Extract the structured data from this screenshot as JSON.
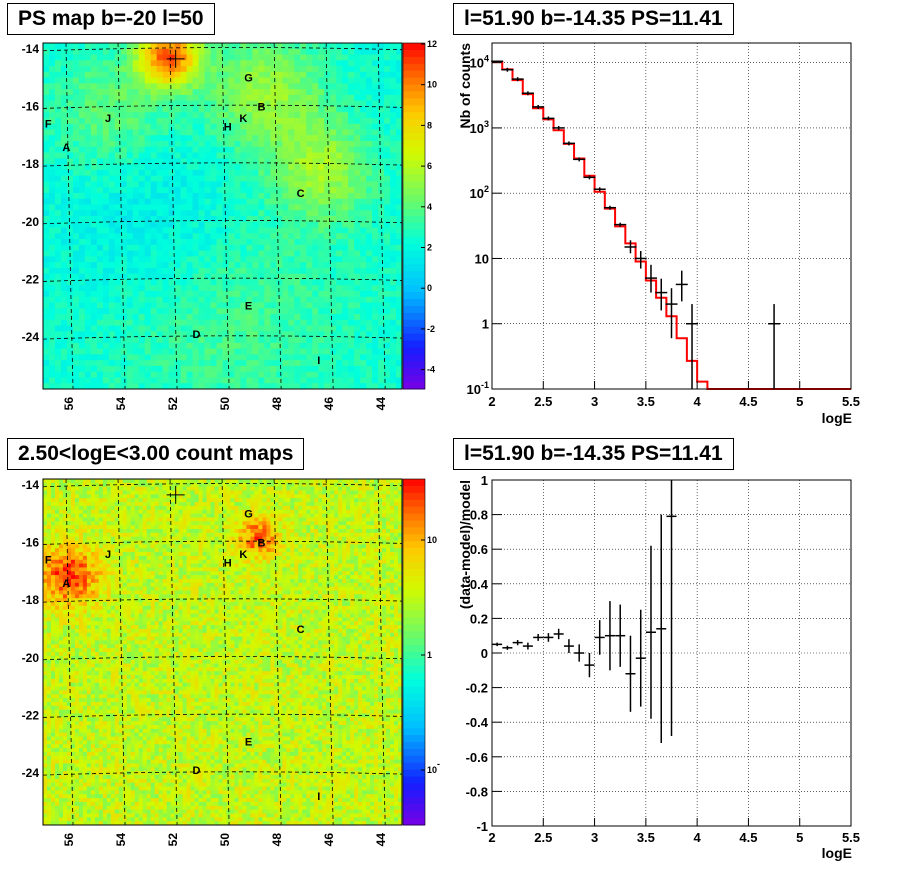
{
  "titles": {
    "tl": "PS map b=-20 l=50",
    "tr": "l=51.90 b=-14.35 PS=11.41",
    "bl": "2.50<logE<3.00 count maps",
    "br": "l=51.90 b=-14.35 PS=11.41"
  },
  "chart_data": [
    {
      "type": "heatmap",
      "title": "PS map b=-20 l=50",
      "x_ticks": [
        "56",
        "54",
        "52",
        "50",
        "48",
        "46",
        "44"
      ],
      "y_ticks": [
        "-14",
        "-16",
        "-18",
        "-20",
        "-22",
        "-24"
      ],
      "colorbar_ticks": [
        "12",
        "10",
        "8",
        "6",
        "4",
        "2",
        "0",
        "-2",
        "-4"
      ],
      "colorbar_range": [
        -5,
        12
      ],
      "source_labels": [
        "F",
        "A",
        "J",
        "G",
        "B",
        "K",
        "H",
        "C",
        "E",
        "D",
        "I"
      ],
      "marker": {
        "l": 51.9,
        "b": -14.35
      }
    },
    {
      "type": "line",
      "title": "l=51.90 b=-14.35 PS=11.41",
      "xlabel": "logE",
      "ylabel": "Nb of counts",
      "y_scale": "log",
      "xlim": [
        2,
        5.5
      ],
      "ylim": [
        0.1,
        20000
      ],
      "x_ticks": [
        "2",
        "2.5",
        "3",
        "3.5",
        "4",
        "4.5",
        "5",
        "5.5"
      ],
      "y_ticks": [
        "10^4",
        "10^3",
        "10^2",
        "10",
        "1",
        "10^-1"
      ],
      "grid": true,
      "data_points": [
        {
          "x": 2.05,
          "y": 10500,
          "err_lo": 10400,
          "err_hi": 10600
        },
        {
          "x": 2.15,
          "y": 7800
        },
        {
          "x": 2.25,
          "y": 5600
        },
        {
          "x": 2.35,
          "y": 3400
        },
        {
          "x": 2.45,
          "y": 2100
        },
        {
          "x": 2.55,
          "y": 1400
        },
        {
          "x": 2.65,
          "y": 1000
        },
        {
          "x": 2.75,
          "y": 580
        },
        {
          "x": 2.85,
          "y": 330
        },
        {
          "x": 2.95,
          "y": 175
        },
        {
          "x": 3.05,
          "y": 115
        },
        {
          "x": 3.15,
          "y": 60
        },
        {
          "x": 3.25,
          "y": 33
        },
        {
          "x": 3.35,
          "y": 15,
          "err_lo": 12,
          "err_hi": 19
        },
        {
          "x": 3.45,
          "y": 10,
          "err_lo": 7,
          "err_hi": 13
        },
        {
          "x": 3.55,
          "y": 5,
          "err_lo": 3,
          "err_hi": 8
        },
        {
          "x": 3.65,
          "y": 3,
          "err_lo": 1.6,
          "err_hi": 4.9
        },
        {
          "x": 3.75,
          "y": 2,
          "err_lo": 0.6,
          "err_hi": 3.5
        },
        {
          "x": 3.85,
          "y": 4,
          "err_lo": 2.2,
          "err_hi": 6.5
        },
        {
          "x": 3.95,
          "y": 1,
          "err_lo": 0.1,
          "err_hi": 2
        },
        {
          "x": 4.75,
          "y": 1,
          "err_lo": 0.1,
          "err_hi": 2
        }
      ],
      "model_step": {
        "edges": [
          2.0,
          2.1,
          2.2,
          2.3,
          2.4,
          2.5,
          2.6,
          2.7,
          2.8,
          2.9,
          3.0,
          3.1,
          3.2,
          3.3,
          3.4,
          3.5,
          3.6,
          3.7,
          3.8,
          3.9,
          4.0,
          4.1,
          5.5
        ],
        "values": [
          10200,
          7900,
          5400,
          3300,
          2000,
          1350,
          920,
          570,
          340,
          185,
          105,
          58,
          31,
          17,
          9,
          4.6,
          2.5,
          1.3,
          0.6,
          0.27,
          0.13,
          0.1
        ]
      },
      "series": [
        {
          "name": "",
          "color": "#000000"
        },
        {
          "name": "",
          "color": "#ff0000"
        }
      ]
    },
    {
      "type": "heatmap",
      "title": "2.50<logE<3.00 count maps",
      "x_ticks": [
        "56",
        "54",
        "52",
        "50",
        "48",
        "46",
        "44"
      ],
      "y_ticks": [
        "-14",
        "-16",
        "-18",
        "-20",
        "-22",
        "-24"
      ],
      "colorbar_ticks": [
        "10",
        "1",
        "10^-1"
      ],
      "colorbar_scale": "log",
      "source_labels": [
        "F",
        "A",
        "J",
        "G",
        "B",
        "K",
        "H",
        "C",
        "E",
        "D",
        "I"
      ]
    },
    {
      "type": "scatter",
      "title": "l=51.90 b=-14.35 PS=11.41",
      "xlabel": "logE",
      "ylabel": "(data-model)/model",
      "xlim": [
        2,
        5.5
      ],
      "ylim": [
        -1,
        1
      ],
      "x_ticks": [
        "2",
        "2.5",
        "3",
        "3.5",
        "4",
        "4.5",
        "5",
        "5.5"
      ],
      "y_ticks": [
        "1",
        "0.8",
        "0.6",
        "0.4",
        "0.2",
        "0",
        "-0.2",
        "-0.4",
        "-0.6",
        "-0.8",
        "-1"
      ],
      "grid": true,
      "points": [
        {
          "x": 2.05,
          "y": 0.05,
          "err": 0.01
        },
        {
          "x": 2.15,
          "y": 0.03,
          "err": 0.012
        },
        {
          "x": 2.25,
          "y": 0.06,
          "err": 0.015
        },
        {
          "x": 2.35,
          "y": 0.04,
          "err": 0.02
        },
        {
          "x": 2.45,
          "y": 0.09,
          "err": 0.02
        },
        {
          "x": 2.55,
          "y": 0.09,
          "err": 0.025
        },
        {
          "x": 2.65,
          "y": 0.11,
          "err": 0.03
        },
        {
          "x": 2.75,
          "y": 0.04,
          "err": 0.04
        },
        {
          "x": 2.85,
          "y": 0.0,
          "err": 0.05
        },
        {
          "x": 2.95,
          "y": -0.07,
          "err": 0.07
        },
        {
          "x": 3.05,
          "y": 0.09,
          "err": 0.1
        },
        {
          "x": 3.15,
          "y": 0.1,
          "err": 0.2
        },
        {
          "x": 3.25,
          "y": 0.1,
          "err": 0.18
        },
        {
          "x": 3.35,
          "y": -0.12,
          "err": 0.22
        },
        {
          "x": 3.45,
          "y": -0.03,
          "err": 0.28
        },
        {
          "x": 3.55,
          "y": 0.12,
          "err": 0.5
        },
        {
          "x": 3.65,
          "y": 0.14,
          "err": 0.66
        },
        {
          "x": 3.75,
          "y": 0.79,
          "err": 1.27
        }
      ]
    }
  ]
}
